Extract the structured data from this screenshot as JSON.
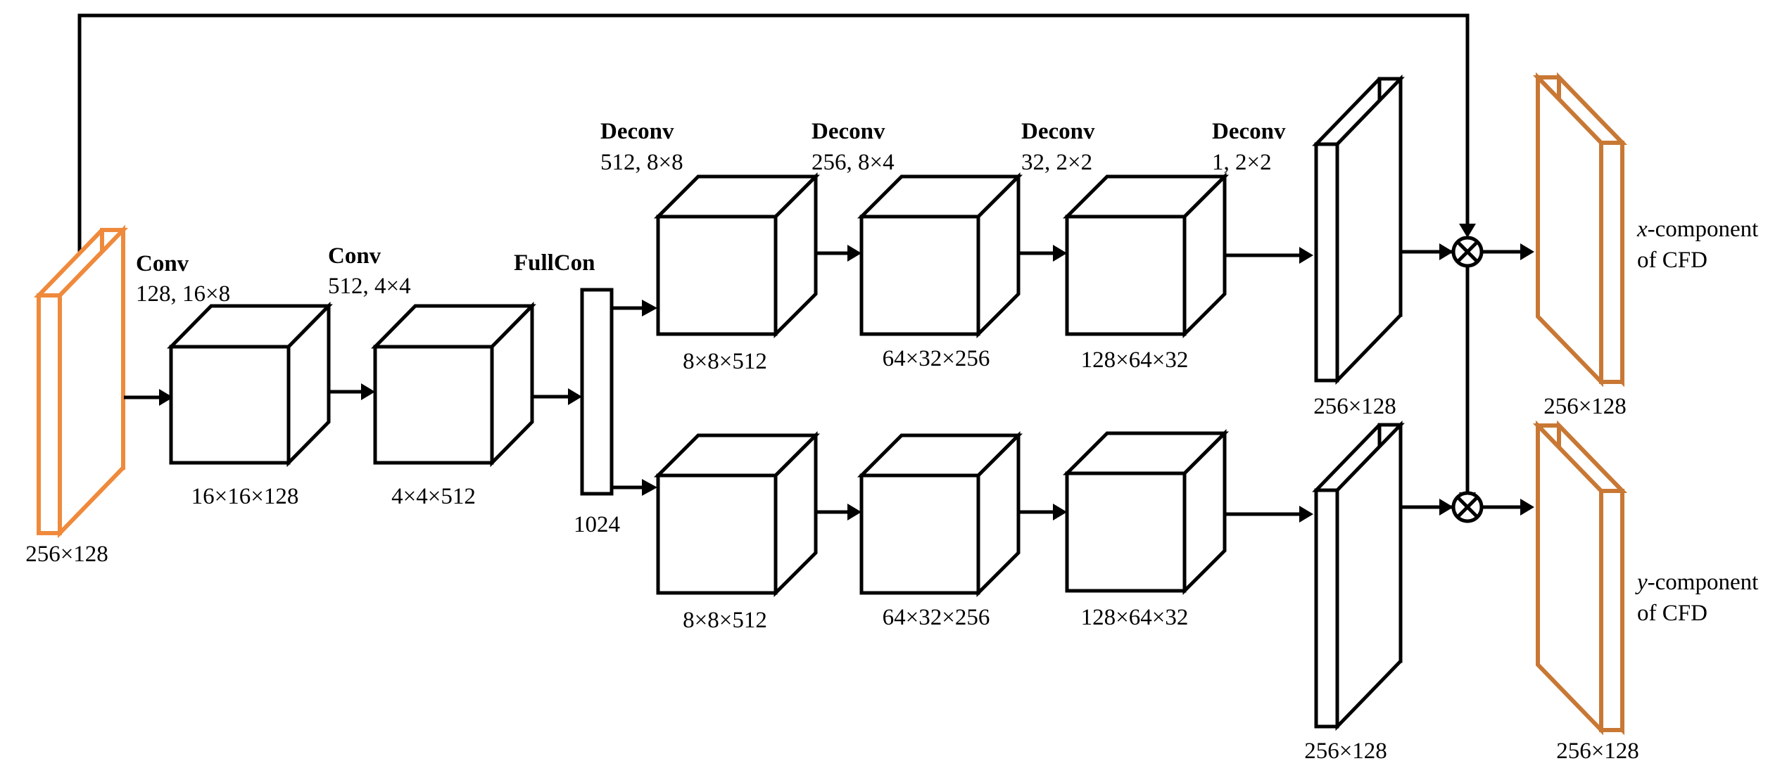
{
  "input": {
    "size": "256×128",
    "color": "#ef8a3c"
  },
  "encoder": [
    {
      "op": "Conv",
      "params": "128, 16×8",
      "size": "16×16×128"
    },
    {
      "op": "Conv",
      "params": "512, 4×4",
      "size": "4×4×512"
    }
  ],
  "fullcon": {
    "op": "FullCon",
    "size": "1024"
  },
  "decoder_headers": [
    {
      "op": "Deconv",
      "params": "512, 8×8"
    },
    {
      "op": "Deconv",
      "params": "256, 8×4"
    },
    {
      "op": "Deconv",
      "params": "32, 2×2"
    },
    {
      "op": "Deconv",
      "params": "1, 2×2"
    }
  ],
  "decoder_x": {
    "sizes": [
      "8×8×512",
      "64×32×256",
      "128×64×32"
    ],
    "output_size": "256×128"
  },
  "decoder_y": {
    "sizes": [
      "8×8×512",
      "64×32×256",
      "128×64×32"
    ],
    "output_size": "256×128"
  },
  "outputs": [
    {
      "italic": "x",
      "rest": "-component",
      "line2": "of CFD",
      "size": "256×128"
    },
    {
      "italic": "y",
      "rest": "-component",
      "line2": "of CFD",
      "size": "256×128"
    }
  ],
  "output_color": "#c87834"
}
